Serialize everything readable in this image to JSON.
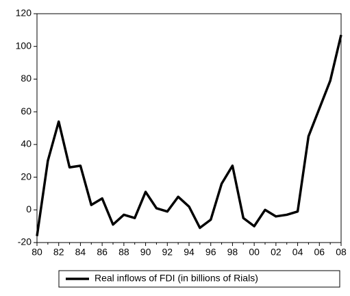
{
  "chart_data": {
    "type": "line",
    "categories": [
      "80",
      null,
      "82",
      null,
      "84",
      null,
      "86",
      null,
      "88",
      null,
      "90",
      null,
      "92",
      null,
      "94",
      null,
      "96",
      null,
      "98",
      null,
      "00",
      null,
      "02",
      null,
      "04",
      null,
      "06",
      null,
      "08"
    ],
    "series": [
      {
        "name": "Real inflows of FDI (in billions of Rials)",
        "color": "#000000",
        "values": [
          -16,
          30,
          54,
          26,
          27,
          3,
          7,
          -9,
          -3,
          -5,
          11,
          1,
          -1,
          8,
          2,
          -11,
          -6,
          16,
          27,
          -5,
          -10,
          0,
          -4,
          -3,
          -1,
          45,
          62,
          79,
          107
        ]
      }
    ],
    "ylim": [
      -20,
      120
    ],
    "yticks": [
      -20,
      0,
      20,
      40,
      60,
      80,
      100,
      120
    ],
    "grid": false
  }
}
